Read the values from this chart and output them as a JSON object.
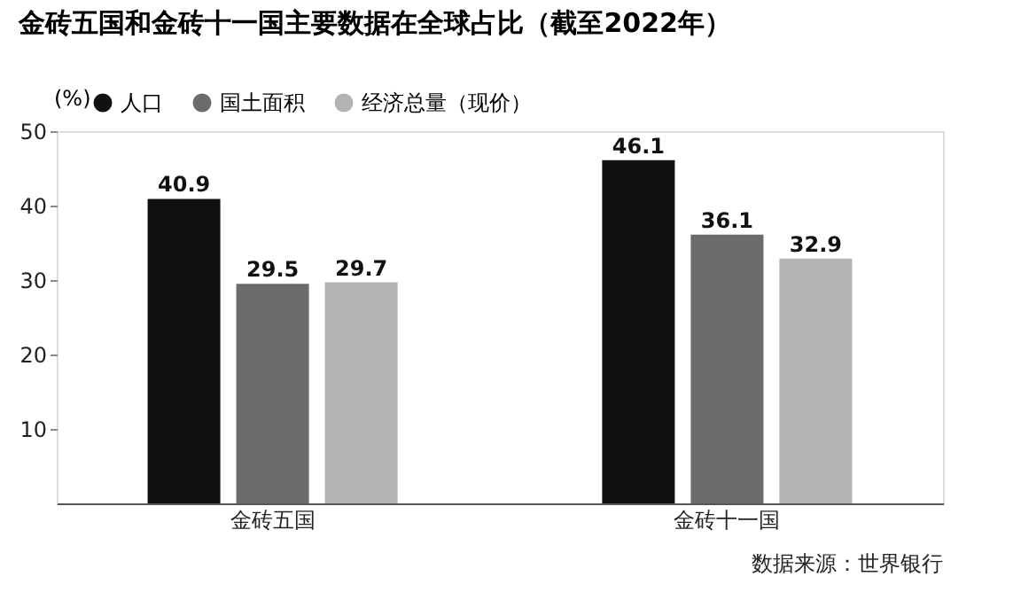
{
  "chart_data": {
    "type": "bar",
    "title": "金砖五国和金砖十一国主要数据在全球占比（截至2022年）",
    "ylabel": "(%)",
    "categories": [
      "金砖五国",
      "金砖十一国"
    ],
    "series": [
      {
        "name": "人口",
        "color": "#111111",
        "values": [
          40.9,
          46.1
        ]
      },
      {
        "name": "国土面积",
        "color": "#6b6b6b",
        "values": [
          29.5,
          36.1
        ]
      },
      {
        "name": "经济总量（现价）",
        "color": "#b3b3b3",
        "values": [
          29.7,
          32.9
        ]
      }
    ],
    "ylim": [
      0,
      50
    ],
    "yticks": [
      10,
      20,
      30,
      40,
      50
    ],
    "grid": false,
    "legend": "top left",
    "data_labels": true,
    "annotations": [
      "数据来源：世界银行"
    ]
  }
}
